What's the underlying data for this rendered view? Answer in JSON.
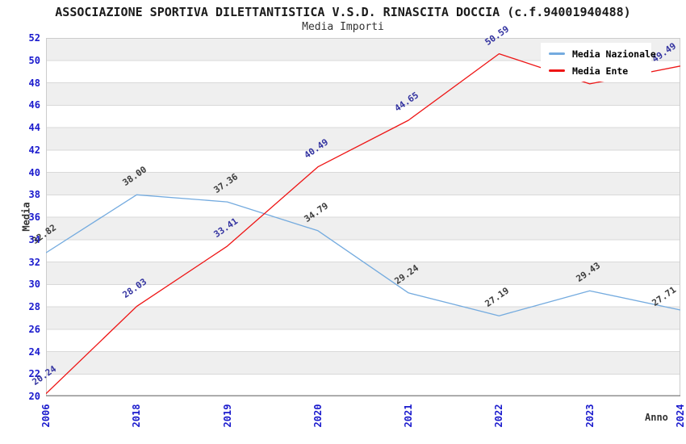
{
  "header": {
    "title": "ASSOCIAZIONE SPORTIVA DILETTANTISTICA V.S.D. RINASCITA DOCCIA (c.f.94001940488)",
    "subtitle": "Media Importi"
  },
  "legend": {
    "position": "top-right",
    "items": [
      {
        "label": "Media Nazionale",
        "color": "#74abdf"
      },
      {
        "label": "Media Ente",
        "color": "#ee1515"
      }
    ]
  },
  "chart_data": {
    "type": "line",
    "categories": [
      "2006",
      "2018",
      "2019",
      "2020",
      "2021",
      "2022",
      "2023",
      "2024"
    ],
    "xlabel": "Anno",
    "ylabel": "Media",
    "ylim": [
      20,
      52
    ],
    "ytick_step": 2,
    "grid": true,
    "band_fill": true,
    "legend_position": "top-right",
    "series": [
      {
        "name": "Media Nazionale",
        "color": "#74abdf",
        "label_color": "#3c3c3c",
        "values": [
          32.82,
          38.0,
          37.36,
          34.79,
          29.24,
          27.19,
          29.43,
          27.71
        ],
        "labels": [
          "32.82",
          "38.00",
          "37.36",
          "34.79",
          "29.24",
          "27.19",
          "29.43",
          "27.71"
        ]
      },
      {
        "name": "Media Ente",
        "color": "#ee1515",
        "label_color": "#3333a0",
        "values": [
          20.24,
          28.03,
          33.41,
          40.49,
          44.65,
          50.59,
          47.9,
          49.49
        ],
        "labels": [
          "20.24",
          "28.03",
          "33.41",
          "40.49",
          "44.65",
          "50.59",
          "",
          "49.49"
        ]
      }
    ],
    "colors": {
      "band": "#efefef",
      "gridline": "#d9d9d9",
      "spine": "#cccccc",
      "axis": "#909090",
      "tick_label": "#1a1acd"
    }
  }
}
